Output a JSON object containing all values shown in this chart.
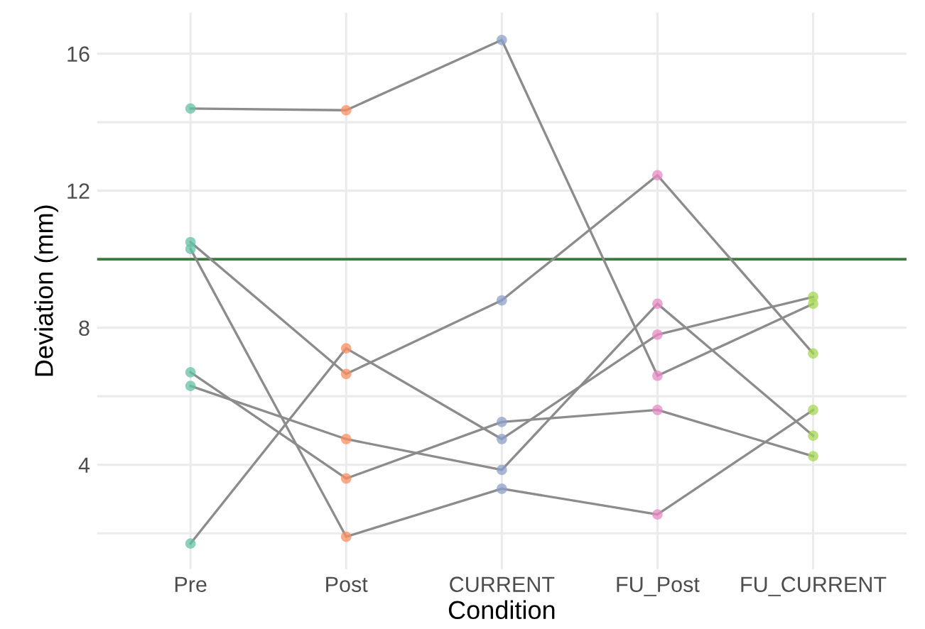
{
  "chart_data": {
    "type": "line",
    "xlabel": "Condition",
    "ylabel": "Deviation (mm)",
    "categories": [
      "Pre",
      "Post",
      "CURRENT",
      "FU_Post",
      "FU_CURRENT"
    ],
    "series": [
      {
        "color": "#8c8c8c",
        "colors": [
          "#66c2a5",
          "#fc8d62",
          "#8da0cb",
          "#e78ac3",
          "#a6d854"
        ],
        "values": [
          14.4,
          14.35,
          16.4,
          6.6,
          8.7
        ]
      },
      {
        "color": "#8c8c8c",
        "colors": [
          "#66c2a5",
          "#fc8d62",
          "#8da0cb",
          "#e78ac3",
          "#a6d854"
        ],
        "values": [
          10.5,
          6.65,
          8.8,
          12.45,
          7.25
        ]
      },
      {
        "color": "#8c8c8c",
        "colors": [
          "#66c2a5",
          "#fc8d62",
          "#8da0cb",
          "#e78ac3",
          "#a6d854"
        ],
        "values": [
          10.3,
          1.9,
          3.3,
          2.55,
          5.6
        ]
      },
      {
        "color": "#8c8c8c",
        "colors": [
          "#66c2a5",
          "#fc8d62",
          "#8da0cb",
          "#e78ac3",
          "#a6d854"
        ],
        "values": [
          1.7,
          7.4,
          4.75,
          7.8,
          8.9
        ]
      },
      {
        "color": "#8c8c8c",
        "colors": [
          "#66c2a5",
          "#fc8d62",
          "#8da0cb",
          "#e78ac3",
          "#a6d854"
        ],
        "values": [
          6.7,
          3.6,
          5.25,
          5.6,
          4.25
        ]
      },
      {
        "color": "#8c8c8c",
        "colors": [
          "#66c2a5",
          "#fc8d62",
          "#8da0cb",
          "#e78ac3",
          "#a6d854"
        ],
        "values": [
          6.3,
          4.75,
          3.85,
          8.7,
          4.85
        ]
      }
    ],
    "ylim": [
      0.95,
      17.2
    ],
    "yticks": [
      {
        "value": 2,
        "label": null
      },
      4,
      {
        "value": 6,
        "label": null
      },
      8,
      {
        "value": 10,
        "label": null
      },
      12,
      {
        "value": 14,
        "label": null
      },
      16
    ],
    "ref_lines": [
      {
        "axis": "y",
        "value": 10,
        "color": "#3d7a3d",
        "line_style": "solid"
      }
    ],
    "grid": true,
    "legend": false,
    "marker": "circle",
    "line_style": "solid"
  }
}
